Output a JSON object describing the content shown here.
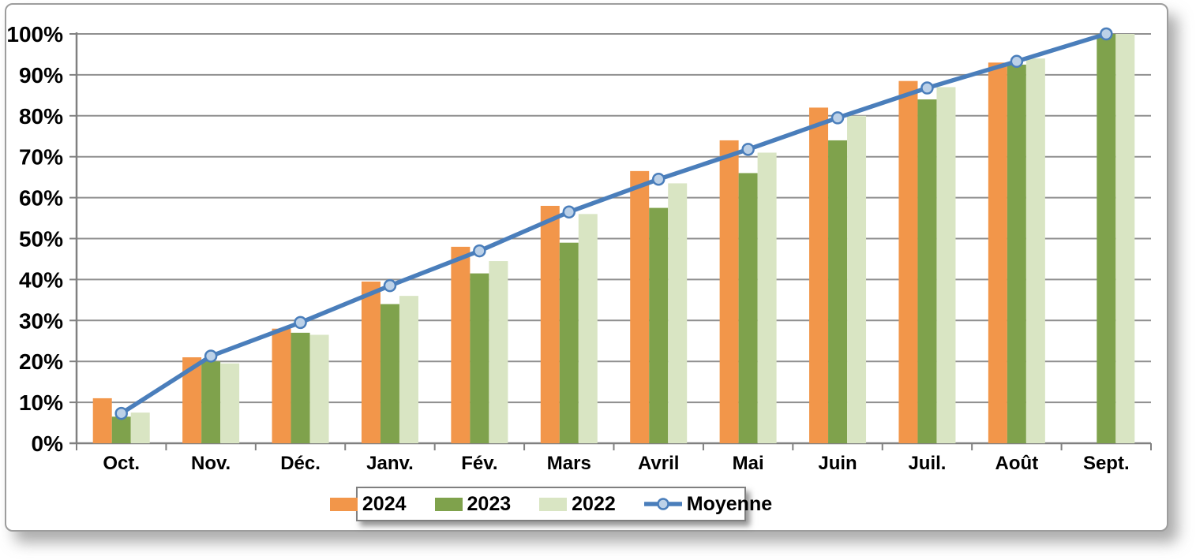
{
  "chart_data": {
    "type": "bar",
    "subtype": "grouped-bars-with-line",
    "title": "",
    "xlabel": "",
    "ylabel": "",
    "categories": [
      "Oct.",
      "Nov.",
      "Déc.",
      "Janv.",
      "Fév.",
      "Mars",
      "Avril",
      "Mai",
      "Juin",
      "Juil.",
      "Août",
      "Sept."
    ],
    "series": [
      {
        "name": "2024",
        "type": "bar",
        "color": "#F2964A",
        "values": [
          11,
          21,
          28,
          39.5,
          48,
          58,
          66.5,
          74,
          82,
          88.5,
          93,
          null
        ]
      },
      {
        "name": "2023",
        "type": "bar",
        "color": "#7FA24C",
        "values": [
          6.5,
          20,
          27,
          34,
          41.5,
          49,
          57.5,
          66,
          74,
          84,
          92.5,
          100
        ]
      },
      {
        "name": "2022",
        "type": "bar",
        "color": "#D9E5C3",
        "values": [
          7.5,
          19.5,
          26.5,
          36,
          44.5,
          56,
          63.5,
          71,
          80,
          87,
          94,
          100
        ]
      },
      {
        "name": "Moyenne",
        "type": "line",
        "color": "#4A7EBB",
        "marker_fill": "#BCD1E8",
        "values": [
          7.3,
          21.3,
          29.5,
          38.5,
          47,
          56.5,
          64.5,
          71.8,
          79.5,
          86.8,
          93.3,
          100
        ]
      }
    ],
    "y_ticks": [
      "0%",
      "10%",
      "20%",
      "30%",
      "40%",
      "50%",
      "60%",
      "70%",
      "80%",
      "90%",
      "100%"
    ],
    "ylim": [
      0,
      100
    ],
    "grid": true,
    "legend_position": "bottom",
    "colors": {
      "gridline": "#8f8f8f",
      "axis": "#808080",
      "text": "#000000",
      "card_border": "#9d9d9d"
    }
  }
}
